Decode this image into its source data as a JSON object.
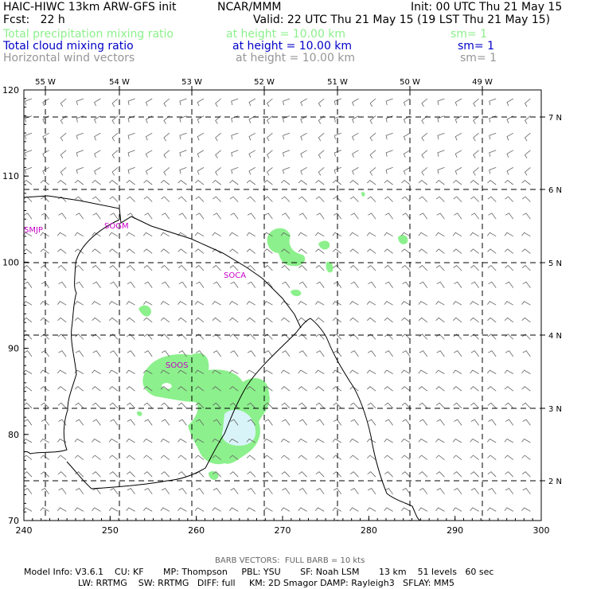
{
  "header": {
    "title_left": "HAIC-HIWC 13km ARW-GFS init",
    "title_center": "NCAR/MMM",
    "init": "Init: 00 UTC Thu 21 May 15",
    "fcst": "Fcst:   22 h",
    "valid": "Valid: 22 UTC Thu 21 May 15 (19 LST Thu 21 May 15)"
  },
  "fields": [
    {
      "name": "Total precipitation mixing ratio",
      "level": "at height = 10.00 km",
      "sm": "sm= 1",
      "color": "#8cf08c"
    },
    {
      "name": "Total cloud mixing ratio",
      "level": "at height = 10.00 km",
      "sm": "sm= 1",
      "color": "#0000c8"
    },
    {
      "name": "Horizontal wind vectors",
      "level": "at height = 10.00 km",
      "sm": "sm= 1",
      "color": "#969696"
    }
  ],
  "map": {
    "longitude_labels": [
      "55 W",
      "54 W",
      "53 W",
      "52 W",
      "51 W",
      "50 W",
      "49 W"
    ],
    "latitude_labels": [
      "7 N",
      "6 N",
      "5 N",
      "4 N",
      "3 N",
      "2 N"
    ],
    "x_ticks": [
      "240",
      "250",
      "260",
      "270",
      "280",
      "290",
      "300"
    ],
    "y_ticks": [
      "120",
      "110",
      "100",
      "90",
      "80",
      "70"
    ],
    "stations": [
      "SMJP",
      "SOGM",
      "SOCA",
      "SOOS"
    ],
    "colors": {
      "precip": "#8cf08c",
      "cloud": "#d8f4f8",
      "station": "#c800c8",
      "coast": "#000000",
      "barb": "#646464"
    }
  },
  "footer": {
    "barb_note": "BARB VECTORS:  FULL BARB = 10 kts",
    "line1": "Model Info: V3.6.1    CU: KF       MP: Thompson     PBL: YSU       SF: Noah LSM       13 km    51 levels   60 sec",
    "line2": "LW: RRTMG    SW: RRTMG   DIFF: full     KM: 2D Smagor DAMP: Rayleigh3   SFLAY: MM5"
  }
}
